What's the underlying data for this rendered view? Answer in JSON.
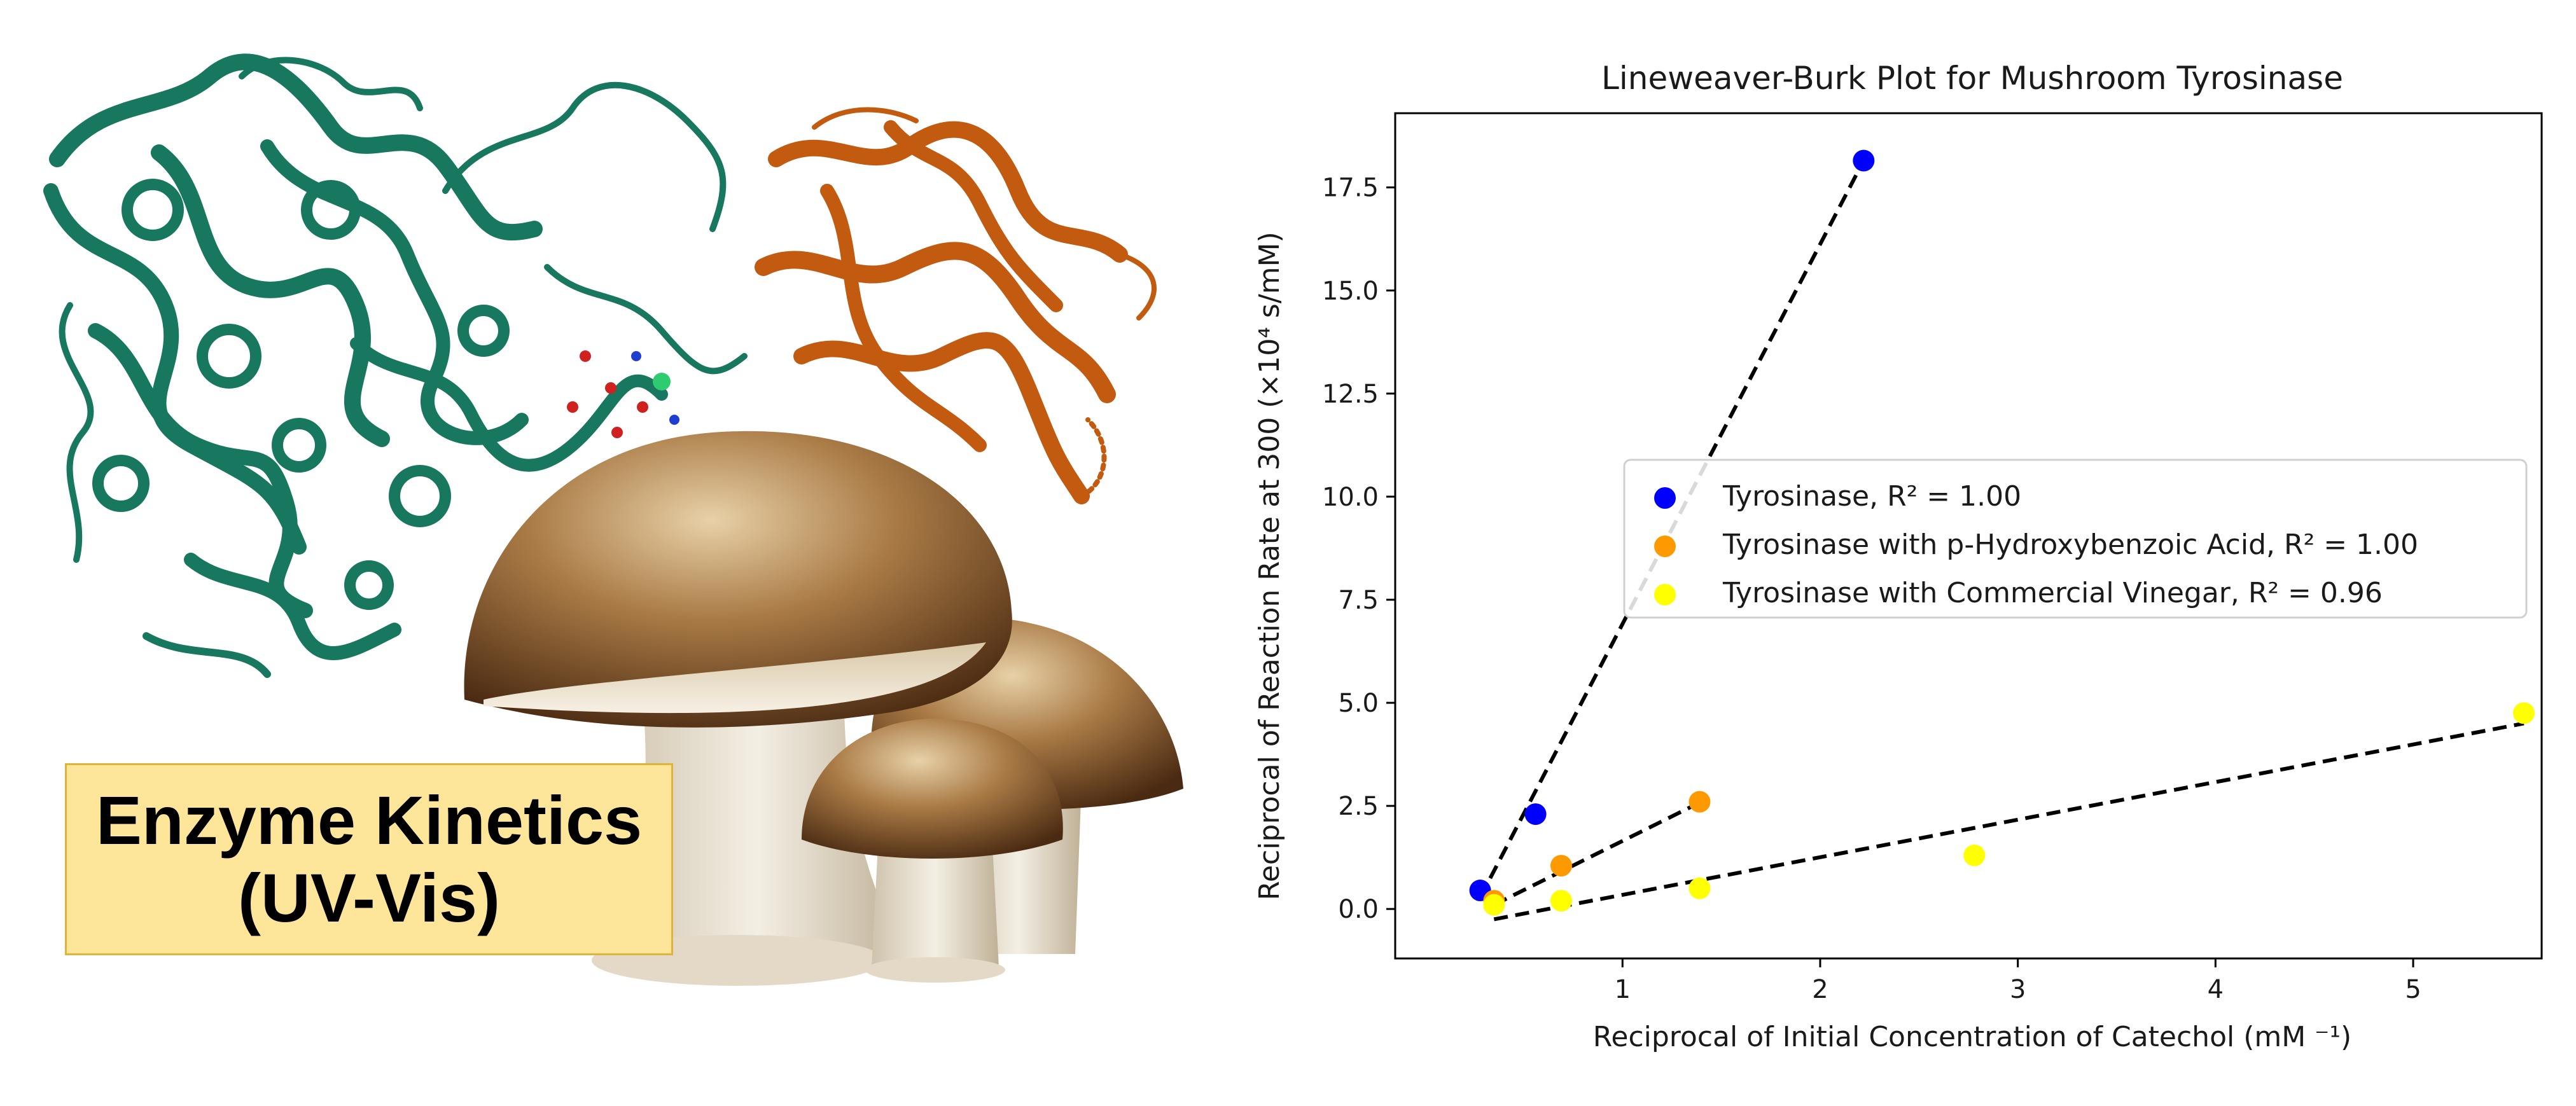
{
  "banner": {
    "line1": "Enzyme Kinetics",
    "line2": "(UV-Vis)"
  },
  "chart_data": {
    "type": "scatter",
    "title": "Lineweaver-Burk Plot for Mushroom Tyrosinase",
    "xlabel": "Reciprocal of Initial Concentration of Catechol (mM ⁻¹)",
    "ylabel": "Reciprocal of Reaction Rate at 300 (×10⁴ s/mM)",
    "xlim": [
      -0.15,
      5.65
    ],
    "ylim": [
      -1.2,
      19.3
    ],
    "xticks": [
      1,
      2,
      3,
      4,
      5
    ],
    "yticks": [
      0.0,
      2.5,
      5.0,
      7.5,
      10.0,
      12.5,
      15.0,
      17.5
    ],
    "ytick_labels": [
      "0.0",
      "2.5",
      "5.0",
      "7.5",
      "10.0",
      "12.5",
      "15.0",
      "17.5"
    ],
    "grid": false,
    "legend_position": "center-right",
    "series": [
      {
        "name": "Tyrosinase, R² = 1.00",
        "color": "#0000ff",
        "x": [
          0.28,
          0.56,
          2.22
        ],
        "y": [
          0.45,
          2.3,
          18.15
        ],
        "fit": {
          "x": [
            0.28,
            2.22
          ],
          "y": [
            0.28,
            18.15
          ]
        }
      },
      {
        "name": "Tyrosinase with p-Hydroxybenzoic Acid, R² = 1.00",
        "color": "#ff9900",
        "x": [
          0.35,
          0.69,
          1.39
        ],
        "y": [
          0.2,
          1.05,
          2.6
        ],
        "fit": {
          "x": [
            0.35,
            1.39
          ],
          "y": [
            0.1,
            2.58
          ]
        }
      },
      {
        "name": "Tyrosinase with Commercial Vinegar, R² = 0.96",
        "color": "#ffff00",
        "x": [
          0.35,
          0.69,
          1.39,
          2.78,
          5.56
        ],
        "y": [
          0.1,
          0.2,
          0.5,
          1.3,
          4.75
        ],
        "fit": {
          "x": [
            0.35,
            5.56
          ],
          "y": [
            -0.25,
            4.5
          ]
        }
      }
    ]
  }
}
